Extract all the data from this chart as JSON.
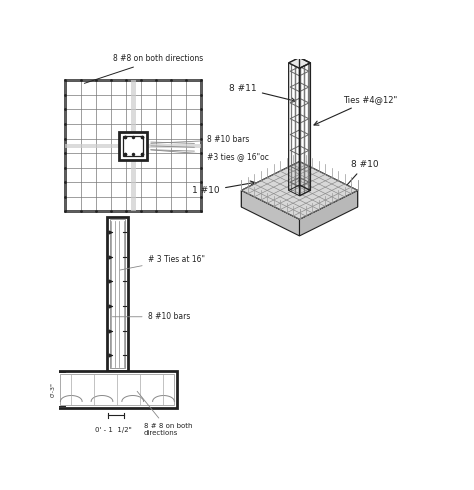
{
  "bg_color": "#ffffff",
  "line_color": "#555555",
  "dark_color": "#222222",
  "annotations": {
    "top_plan": "8 #8 on both directions",
    "bars_label": "8 #10 bars",
    "ties_label": "#3 ties @ 16\"oc",
    "ties_elev": "# 3 Ties at 16\"",
    "bars_elev": "8 #10 bars",
    "both_dir": "8 # 8 on both\ndirections",
    "dim_label": "0' - 1  1/2\"",
    "col_11": "8 #11",
    "ties_12": "Ties #4@12\"",
    "col_10": "8 #10",
    "foot_10": "1 #10"
  }
}
